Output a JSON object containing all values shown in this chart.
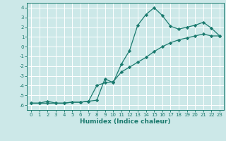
{
  "xlabel": "Humidex (Indice chaleur)",
  "bg_color": "#cce8e8",
  "grid_color": "#ffffff",
  "line_color": "#1a7a6e",
  "xlim": [
    -0.5,
    23.5
  ],
  "ylim": [
    -6.5,
    4.5
  ],
  "xticks": [
    0,
    1,
    2,
    3,
    4,
    5,
    6,
    7,
    8,
    9,
    10,
    11,
    12,
    13,
    14,
    15,
    16,
    17,
    18,
    19,
    20,
    21,
    22,
    23
  ],
  "yticks": [
    -6,
    -5,
    -4,
    -3,
    -2,
    -1,
    0,
    1,
    2,
    3,
    4
  ],
  "curve1_x": [
    0,
    1,
    2,
    3,
    4,
    5,
    6,
    7,
    8,
    9,
    10,
    11,
    12,
    13,
    14,
    15,
    16,
    17,
    18,
    19,
    20,
    21,
    22,
    23
  ],
  "curve1_y": [
    -5.8,
    -5.8,
    -5.6,
    -5.8,
    -5.8,
    -5.7,
    -5.7,
    -5.6,
    -5.5,
    -3.3,
    -3.7,
    -1.8,
    -0.4,
    2.2,
    3.3,
    4.0,
    3.2,
    2.1,
    1.8,
    2.0,
    2.2,
    2.5,
    1.9,
    1.1
  ],
  "curve2_x": [
    0,
    1,
    2,
    3,
    4,
    5,
    6,
    7,
    8,
    9,
    10,
    11,
    12,
    13,
    14,
    15,
    16,
    17,
    18,
    19,
    20,
    21,
    22,
    23
  ],
  "curve2_y": [
    -5.8,
    -5.8,
    -5.8,
    -5.8,
    -5.8,
    -5.7,
    -5.7,
    -5.6,
    -4.0,
    -3.7,
    -3.6,
    -2.6,
    -2.1,
    -1.6,
    -1.1,
    -0.5,
    0.0,
    0.4,
    0.7,
    0.9,
    1.1,
    1.3,
    1.1,
    1.1
  ],
  "marker": "D",
  "marker_size": 2.2,
  "line_width": 0.9,
  "tick_fontsize": 5.0,
  "xlabel_fontsize": 6.5
}
